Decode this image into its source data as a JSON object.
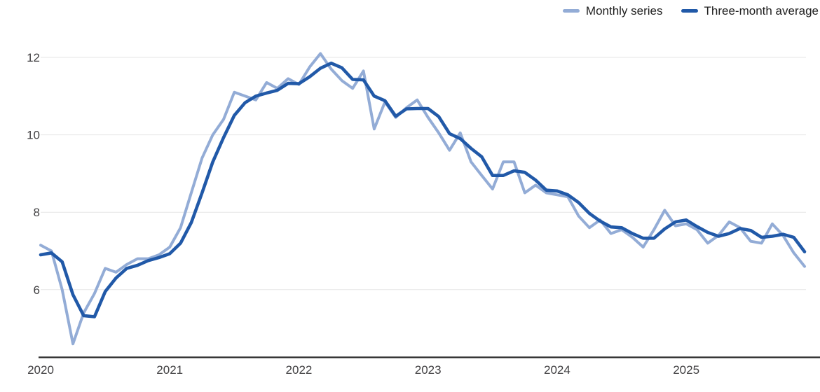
{
  "legend": {
    "items": [
      {
        "label": "Monthly series",
        "color": "#93ACD6"
      },
      {
        "label": "Three-month average",
        "color": "#2159A8"
      }
    ]
  },
  "chart_data": {
    "type": "line",
    "title": "",
    "xlabel": "",
    "ylabel": "",
    "grid": "horizontal-only",
    "legend_position": "top-right",
    "background_color": "#ffffff",
    "gridline_color": "#E6E6E6",
    "axis_line_color": "#262626",
    "tick_label_color": "#414042",
    "y_ticks": [
      12,
      10,
      8,
      6
    ],
    "y_tick_labels": [
      "12",
      "10",
      "8",
      "6"
    ],
    "ylim": [
      4.25,
      12.35
    ],
    "x_tick_labels": [
      "2020",
      "2021",
      "2022",
      "2023",
      "2024",
      "2025"
    ],
    "x": [
      "2020-01",
      "2020-02",
      "2020-03",
      "2020-04",
      "2020-05",
      "2020-06",
      "2020-07",
      "2020-08",
      "2020-09",
      "2020-10",
      "2020-11",
      "2020-12",
      "2021-01",
      "2021-02",
      "2021-03",
      "2021-04",
      "2021-05",
      "2021-06",
      "2021-07",
      "2021-08",
      "2021-09",
      "2021-10",
      "2021-11",
      "2021-12",
      "2022-01",
      "2022-02",
      "2022-03",
      "2022-04",
      "2022-05",
      "2022-06",
      "2022-07",
      "2022-08",
      "2022-09",
      "2022-10",
      "2022-11",
      "2022-12",
      "2023-01",
      "2023-02",
      "2023-03",
      "2023-04",
      "2023-05",
      "2023-06",
      "2023-07",
      "2023-08",
      "2023-09",
      "2023-10",
      "2023-11",
      "2023-12",
      "2024-01",
      "2024-02",
      "2024-03",
      "2024-04",
      "2024-05",
      "2024-06",
      "2024-07",
      "2024-08",
      "2024-09",
      "2024-10",
      "2024-11",
      "2024-12",
      "2025-01",
      "2025-02",
      "2025-03",
      "2025-04",
      "2025-05",
      "2025-06",
      "2025-07",
      "2025-08",
      "2025-09",
      "2025-10",
      "2025-11",
      "2025-12"
    ],
    "series": [
      {
        "name": "Monthly series",
        "color": "#93ACD6",
        "stroke_width": 4,
        "values": [
          7.15,
          7.0,
          6.0,
          4.6,
          5.4,
          5.9,
          6.55,
          6.45,
          6.65,
          6.8,
          6.8,
          6.9,
          7.1,
          7.6,
          8.5,
          9.4,
          10.0,
          10.4,
          11.1,
          11.0,
          10.9,
          11.35,
          11.2,
          11.45,
          11.3,
          11.75,
          12.1,
          11.7,
          11.4,
          11.2,
          11.65,
          10.15,
          10.85,
          10.45,
          10.7,
          10.9,
          10.45,
          10.05,
          9.6,
          10.05,
          9.3,
          8.95,
          8.6,
          9.3,
          9.3,
          8.5,
          8.7,
          8.5,
          8.45,
          8.4,
          7.9,
          7.6,
          7.8,
          7.45,
          7.55,
          7.35,
          7.1,
          7.55,
          8.05,
          7.65,
          7.7,
          7.55,
          7.2,
          7.4,
          7.75,
          7.6,
          7.25,
          7.2,
          7.7,
          7.4,
          6.95,
          6.6
        ]
      },
      {
        "name": "Three-month average",
        "color": "#2159A8",
        "stroke_width": 4.6,
        "values": [
          6.9,
          6.95,
          6.72,
          5.87,
          5.33,
          5.3,
          5.95,
          6.3,
          6.55,
          6.63,
          6.75,
          6.83,
          6.93,
          7.2,
          7.73,
          8.5,
          9.3,
          9.93,
          10.5,
          10.83,
          11.0,
          11.08,
          11.15,
          11.33,
          11.32,
          11.5,
          11.72,
          11.85,
          11.73,
          11.43,
          11.42,
          11.0,
          10.88,
          10.48,
          10.67,
          10.68,
          10.68,
          10.47,
          10.03,
          9.9,
          9.65,
          9.43,
          8.95,
          8.95,
          9.07,
          9.03,
          8.83,
          8.57,
          8.55,
          8.45,
          8.25,
          7.97,
          7.77,
          7.62,
          7.6,
          7.45,
          7.33,
          7.33,
          7.57,
          7.75,
          7.8,
          7.63,
          7.48,
          7.38,
          7.45,
          7.58,
          7.53,
          7.35,
          7.38,
          7.43,
          7.35,
          6.98
        ]
      }
    ]
  }
}
